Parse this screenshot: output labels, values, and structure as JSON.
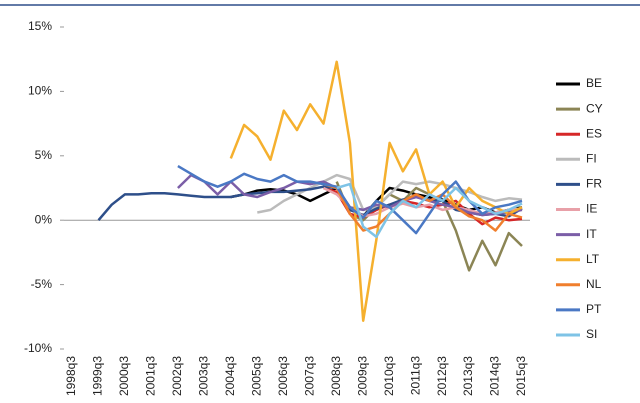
{
  "chart_data": {
    "type": "line",
    "categories": [
      "1998q3",
      null,
      "1999q3",
      null,
      "2000q3",
      null,
      "2001q3",
      null,
      "2002q3",
      null,
      "2003q3",
      null,
      "2004q3",
      null,
      "2005q3",
      null,
      "2006q3",
      null,
      "2007q3",
      null,
      "2008q3",
      null,
      "2009q3",
      null,
      "2010q3",
      null,
      "2011q3",
      null,
      "2012q3",
      null,
      "2013q3",
      null,
      "2014q3",
      null,
      "2015q3"
    ],
    "ylim": [
      -10,
      15
    ],
    "yticks": [
      {
        "value": -10,
        "label": "-10%"
      },
      {
        "value": -5,
        "label": "-5%"
      },
      {
        "value": 0,
        "label": "0%"
      },
      {
        "value": 5,
        "label": "5%"
      },
      {
        "value": 10,
        "label": "10%"
      },
      {
        "value": 15,
        "label": "15%"
      }
    ],
    "series": [
      {
        "name": "BE",
        "color": "#000000",
        "values": [
          null,
          null,
          null,
          null,
          null,
          null,
          null,
          null,
          null,
          null,
          null,
          null,
          1.8,
          2.0,
          2.3,
          2.4,
          2.3,
          2.0,
          1.5,
          2.0,
          2.5,
          1.0,
          0.3,
          1.5,
          2.5,
          2.3,
          2.0,
          1.8,
          1.6,
          1.2,
          0.8,
          1.0,
          0.6,
          0.8,
          1.0
        ]
      },
      {
        "name": "CY",
        "color": "#8b8555",
        "values": [
          null,
          null,
          null,
          null,
          null,
          null,
          null,
          null,
          null,
          null,
          null,
          null,
          null,
          null,
          null,
          null,
          null,
          null,
          null,
          null,
          3.0,
          0.5,
          0,
          1.0,
          2.0,
          1.5,
          2.5,
          2.0,
          1.5,
          -0.8,
          -3.9,
          -1.6,
          -3.5,
          -1.0,
          -2.0
        ]
      },
      {
        "name": "ES",
        "color": "#d62728",
        "values": [
          null,
          null,
          null,
          null,
          null,
          null,
          null,
          null,
          null,
          null,
          null,
          null,
          null,
          null,
          null,
          null,
          null,
          null,
          null,
          2.5,
          2.2,
          0.5,
          0.2,
          0.8,
          1.2,
          1.5,
          1.3,
          1.0,
          1.2,
          1.5,
          0.5,
          -0.3,
          0.2,
          0.0,
          0.1
        ]
      },
      {
        "name": "FI",
        "color": "#bbbbbb",
        "values": [
          null,
          null,
          null,
          null,
          null,
          null,
          null,
          null,
          null,
          null,
          null,
          null,
          null,
          null,
          0.6,
          0.8,
          1.5,
          2.0,
          2.5,
          3.0,
          3.5,
          3.2,
          0.8,
          1.0,
          2.0,
          3.0,
          2.8,
          3.0,
          2.8,
          2.5,
          2.2,
          1.8,
          1.5,
          1.7,
          1.6
        ]
      },
      {
        "name": "FR",
        "color": "#2e4f8a",
        "values": [
          null,
          null,
          0,
          1.2,
          2.0,
          2.0,
          2.1,
          2.1,
          2.0,
          1.9,
          1.8,
          1.8,
          1.8,
          2.0,
          2.1,
          2.2,
          2.2,
          2.3,
          2.4,
          2.6,
          2.5,
          0.8,
          0.4,
          0.9,
          1.2,
          1.6,
          1.8,
          1.6,
          1.5,
          0.8,
          0.6,
          0.4,
          0.5,
          0.3,
          0.9
        ]
      },
      {
        "name": "IE",
        "color": "#e8a0a8",
        "values": [
          null,
          null,
          null,
          null,
          null,
          null,
          null,
          null,
          null,
          null,
          null,
          null,
          null,
          null,
          null,
          null,
          null,
          null,
          null,
          2.5,
          2.0,
          1.0,
          0.3,
          0.5,
          1.0,
          1.3,
          1.0,
          1.2,
          0.8,
          1.0,
          0.8,
          0.5,
          0.6,
          0.8,
          0.9
        ]
      },
      {
        "name": "IT",
        "color": "#7b5ea7",
        "values": [
          null,
          null,
          null,
          null,
          null,
          null,
          null,
          null,
          2.5,
          3.5,
          3.0,
          2.0,
          3.0,
          2.0,
          1.8,
          2.2,
          2.5,
          3.0,
          2.8,
          3.0,
          2.5,
          1.0,
          0.8,
          1.2,
          1.0,
          1.5,
          1.8,
          1.5,
          1.2,
          1.0,
          0.6,
          0.4,
          0.5,
          0.6,
          0.8
        ]
      },
      {
        "name": "LT",
        "color": "#f5b02e",
        "values": [
          null,
          null,
          null,
          null,
          null,
          null,
          null,
          null,
          null,
          null,
          null,
          null,
          4.8,
          7.4,
          6.5,
          4.7,
          8.5,
          7.0,
          9.0,
          7.5,
          12.3,
          6.0,
          -7.8,
          -1.5,
          6.0,
          3.8,
          5.5,
          2.0,
          3.0,
          1.0,
          2.5,
          1.5,
          1.0,
          0.5,
          1.0
        ]
      },
      {
        "name": "NL",
        "color": "#f07f2d",
        "values": [
          null,
          null,
          null,
          null,
          null,
          null,
          null,
          null,
          null,
          null,
          null,
          null,
          null,
          null,
          null,
          null,
          null,
          null,
          null,
          2.8,
          2.5,
          0.5,
          -0.8,
          -0.5,
          0.5,
          1.5,
          2.0,
          1.5,
          2.0,
          1.0,
          0.3,
          0.0,
          -0.8,
          0.5,
          0.2
        ]
      },
      {
        "name": "PT",
        "color": "#4a78c4",
        "values": [
          null,
          null,
          null,
          null,
          null,
          null,
          null,
          null,
          4.2,
          3.6,
          3.0,
          2.6,
          3.0,
          3.6,
          3.2,
          3.0,
          3.5,
          3.0,
          3.0,
          2.8,
          2.6,
          1.0,
          0.2,
          1.5,
          1.0,
          0.0,
          -1.0,
          0.5,
          2.0,
          3.0,
          1.5,
          0.5,
          1.0,
          1.2,
          1.5
        ]
      },
      {
        "name": "SI",
        "color": "#7ec3e6",
        "values": [
          null,
          null,
          null,
          null,
          null,
          null,
          null,
          null,
          null,
          null,
          null,
          null,
          null,
          null,
          null,
          null,
          null,
          null,
          null,
          null,
          2.5,
          2.8,
          -0.5,
          -1.3,
          0.5,
          1.5,
          1.0,
          2.0,
          1.5,
          2.5,
          1.5,
          1.0,
          0.5,
          0.8,
          1.3
        ]
      }
    ]
  }
}
